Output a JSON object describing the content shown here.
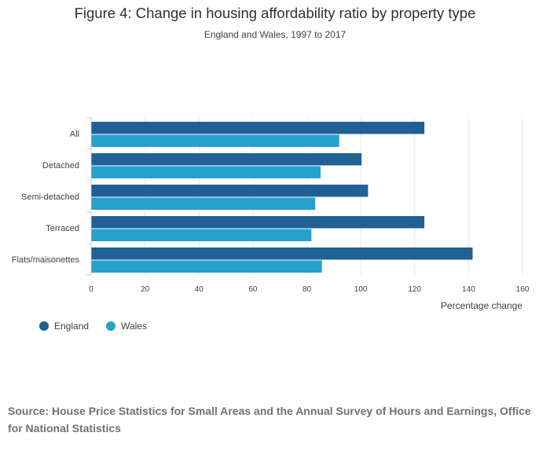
{
  "header": {
    "title": "Figure 4: Change in housing affordability ratio by property type",
    "subtitle": "England and Wales, 1997 to 2017"
  },
  "chart_data": {
    "type": "bar",
    "orientation": "horizontal",
    "title": "Figure 4: Change in housing affordability ratio by property type",
    "subtitle": "England and Wales, 1997 to 2017",
    "categories": [
      "All",
      "Detached",
      "Semi-detached",
      "Terraced",
      "Flats/maisonettes"
    ],
    "series": [
      {
        "name": "England",
        "color": "#206095",
        "values": [
          123.6,
          100.3,
          102.7,
          123.6,
          141.5
        ]
      },
      {
        "name": "Wales",
        "color": "#27a0cc",
        "values": [
          92.0,
          85.1,
          83.1,
          81.7,
          85.6
        ]
      }
    ],
    "xlabel": "Percentage change",
    "ylabel": "",
    "xlim": [
      0,
      160
    ],
    "xticks": [
      "0",
      "20",
      "40",
      "60",
      "80",
      "100",
      "120",
      "140",
      "160"
    ],
    "grid": true,
    "legend_position": "bottom-left"
  },
  "footer": {
    "source": "Source: House Price Statistics for Small Areas and the Annual Survey of Hours and Earnings, Office for National Statistics"
  }
}
